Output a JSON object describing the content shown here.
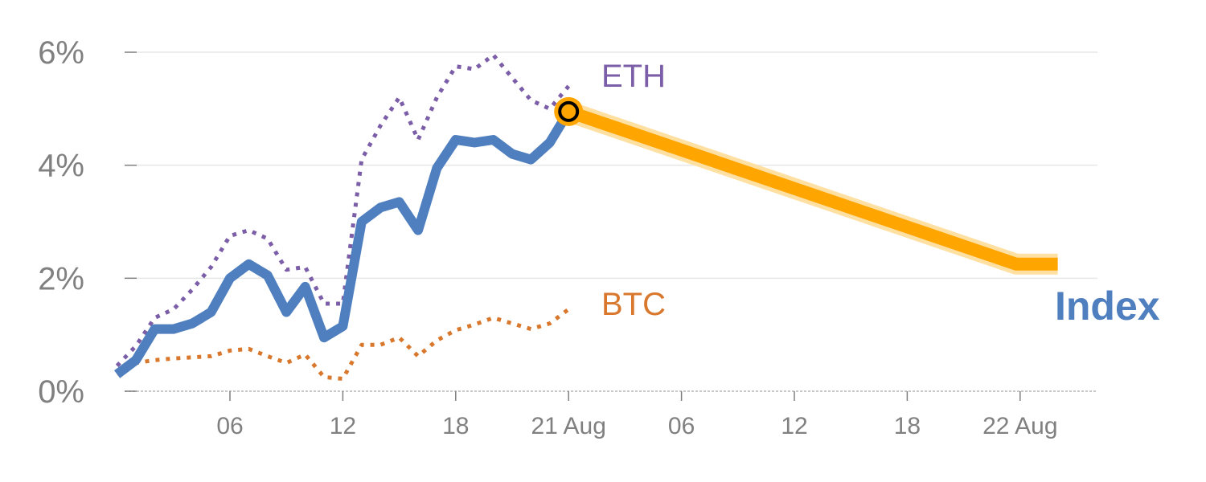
{
  "chart_data": {
    "type": "line",
    "title": "",
    "xlabel": "",
    "ylabel": "",
    "ylim": [
      0,
      6
    ],
    "y_ticks": [
      {
        "value": 0,
        "label": "0%"
      },
      {
        "value": 2,
        "label": "2%"
      },
      {
        "value": 4,
        "label": "4%"
      },
      {
        "value": 6,
        "label": "6%"
      }
    ],
    "x_ticks": [
      {
        "x": 4,
        "label": "06"
      },
      {
        "x": 10,
        "label": "12"
      },
      {
        "x": 16,
        "label": "18"
      },
      {
        "x": 22,
        "label": "21 Aug"
      },
      {
        "x": 28,
        "label": "06"
      },
      {
        "x": 34,
        "label": "12"
      },
      {
        "x": 40,
        "label": "18"
      },
      {
        "x": 46,
        "label": "22 Aug"
      }
    ],
    "grid": true,
    "x_unit": "hours since 21 Aug 00:00",
    "series": [
      {
        "name": "ETH",
        "style": "dotted",
        "color": "#7b5ea7",
        "points": [
          [
            -2,
            0.45
          ],
          [
            -1,
            0.8
          ],
          [
            0,
            1.3
          ],
          [
            1,
            1.45
          ],
          [
            2,
            1.8
          ],
          [
            3,
            2.2
          ],
          [
            4,
            2.75
          ],
          [
            5,
            2.85
          ],
          [
            6,
            2.7
          ],
          [
            7,
            2.15
          ],
          [
            8,
            2.2
          ],
          [
            9,
            1.55
          ],
          [
            10,
            1.55
          ],
          [
            11,
            4.1
          ],
          [
            12,
            4.7
          ],
          [
            13,
            5.2
          ],
          [
            14,
            4.45
          ],
          [
            15,
            5.2
          ],
          [
            16,
            5.75
          ],
          [
            17,
            5.7
          ],
          [
            18,
            5.95
          ],
          [
            19,
            5.55
          ],
          [
            20,
            5.15
          ],
          [
            21,
            5.0
          ],
          [
            22,
            5.4
          ]
        ]
      },
      {
        "name": "BTC",
        "style": "dotted",
        "color": "#d9782d",
        "points": [
          [
            -2,
            0.3
          ],
          [
            -1,
            0.5
          ],
          [
            0,
            0.55
          ],
          [
            1,
            0.58
          ],
          [
            2,
            0.6
          ],
          [
            3,
            0.62
          ],
          [
            4,
            0.72
          ],
          [
            5,
            0.75
          ],
          [
            6,
            0.62
          ],
          [
            7,
            0.5
          ],
          [
            8,
            0.65
          ],
          [
            9,
            0.25
          ],
          [
            10,
            0.22
          ],
          [
            11,
            0.82
          ],
          [
            12,
            0.82
          ],
          [
            13,
            0.95
          ],
          [
            14,
            0.62
          ],
          [
            15,
            0.9
          ],
          [
            16,
            1.08
          ],
          [
            17,
            1.18
          ],
          [
            18,
            1.3
          ],
          [
            19,
            1.2
          ],
          [
            20,
            1.1
          ],
          [
            21,
            1.2
          ],
          [
            22,
            1.45
          ]
        ]
      },
      {
        "name": "Index",
        "style": "solid",
        "color": "#4f7fbf",
        "points": [
          [
            -2,
            0.3
          ],
          [
            -1,
            0.55
          ],
          [
            0,
            1.1
          ],
          [
            1,
            1.1
          ],
          [
            2,
            1.2
          ],
          [
            3,
            1.4
          ],
          [
            4,
            2.0
          ],
          [
            5,
            2.25
          ],
          [
            6,
            2.05
          ],
          [
            7,
            1.4
          ],
          [
            8,
            1.85
          ],
          [
            9,
            0.95
          ],
          [
            10,
            1.15
          ],
          [
            11,
            3.0
          ],
          [
            12,
            3.25
          ],
          [
            13,
            3.35
          ],
          [
            14,
            2.85
          ],
          [
            15,
            3.95
          ],
          [
            16,
            4.45
          ],
          [
            17,
            4.4
          ],
          [
            18,
            4.45
          ],
          [
            19,
            4.2
          ],
          [
            20,
            4.1
          ],
          [
            21,
            4.4
          ],
          [
            22,
            4.95
          ]
        ]
      },
      {
        "name": "",
        "style": "forecast",
        "color": "#ffa500",
        "points": [
          [
            22,
            4.95
          ],
          [
            45.8,
            2.25
          ],
          [
            48,
            2.25
          ]
        ]
      }
    ],
    "marker": {
      "x": 22,
      "y": 4.95,
      "fill": "#ffa500"
    },
    "labels": {
      "eth": "ETH",
      "btc": "BTC",
      "index": "Index"
    }
  }
}
